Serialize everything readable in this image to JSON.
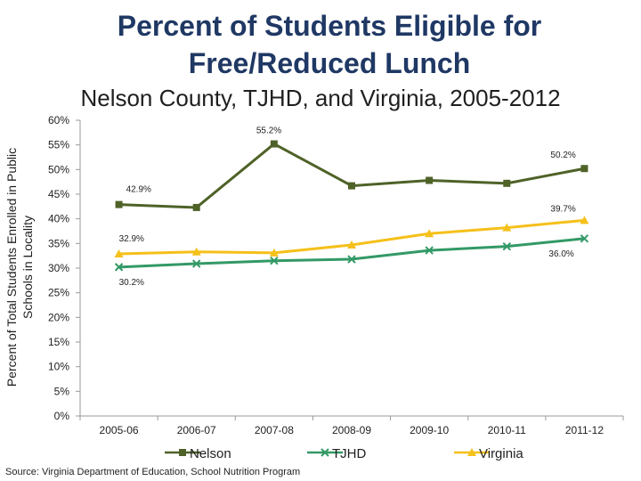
{
  "title": "Percent of Students Eligible for Free/Reduced Lunch",
  "subtitle": "Nelson County, TJHD, and Virginia, 2005-2012",
  "source": "Source: Virginia Department of Education, School Nutrition Program",
  "chart_data": {
    "type": "line",
    "categories": [
      "2005-06",
      "2006-07",
      "2007-08",
      "2008-09",
      "2009-10",
      "2010-11",
      "2011-12"
    ],
    "ylabel_lines": [
      "Percent of Total Students Enrolled in Public",
      "Schools in Locality"
    ],
    "ylim": [
      0,
      60
    ],
    "yticks": [
      0,
      5,
      10,
      15,
      20,
      25,
      30,
      35,
      40,
      45,
      50,
      55,
      60
    ],
    "ytick_labels": [
      "0%",
      "5%",
      "10%",
      "15%",
      "20%",
      "25%",
      "30%",
      "35%",
      "40%",
      "45%",
      "50%",
      "55%",
      "60%"
    ],
    "grid": false,
    "legend_position": "bottom",
    "series": [
      {
        "name": "Nelson",
        "color": "#4f6228",
        "marker": "square",
        "values": [
          42.9,
          42.3,
          55.2,
          46.7,
          47.8,
          47.2,
          50.2
        ],
        "labels": [
          {
            "index": 0,
            "text": "42.9%"
          },
          {
            "index": 2,
            "text": "55.2%"
          },
          {
            "index": 6,
            "text": "50.2%"
          }
        ]
      },
      {
        "name": "TJHD",
        "color": "#339966",
        "marker": "x",
        "values": [
          30.2,
          30.9,
          31.5,
          31.8,
          33.6,
          34.4,
          36.0
        ],
        "labels": [
          {
            "index": 0,
            "text": "30.2%"
          },
          {
            "index": 6,
            "text": "36.0%"
          }
        ]
      },
      {
        "name": "Virginia",
        "color": "#f5c01a",
        "marker": "triangle",
        "values": [
          32.9,
          33.3,
          33.1,
          34.7,
          37.0,
          38.2,
          39.7
        ],
        "labels": [
          {
            "index": 0,
            "text": "32.9%"
          },
          {
            "index": 6,
            "text": "39.7%"
          }
        ]
      }
    ]
  }
}
